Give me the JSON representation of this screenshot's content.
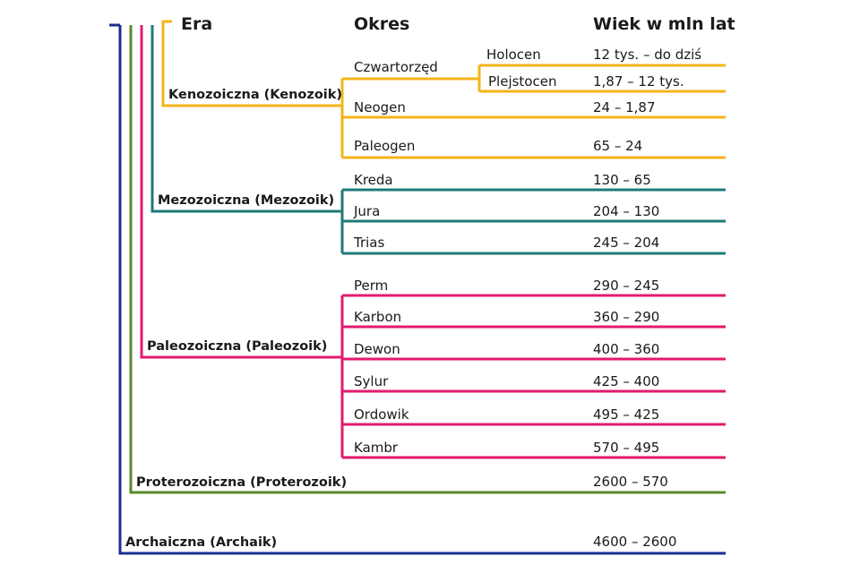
{
  "headers": {
    "era": "Era",
    "period": "Okres",
    "age": "Wiek w mln lat"
  },
  "colors": {
    "cenozoic": "#f4b41a",
    "mesozoic": "#1f7a78",
    "paleozoic": "#e3196f",
    "proterozoic": "#5a8a2a",
    "archaic": "#1b2f8f"
  },
  "eras": {
    "cenozoic": "Kenozoiczna (Kenozoik)",
    "mesozoic": "Mezozoiczna (Mezozoik)",
    "paleozoic": "Paleozoiczna (Paleozoik)",
    "proterozoic": "Proterozoiczna (Proterozoik)",
    "archaic": "Archaiczna (Archaik)"
  },
  "cenozoic": {
    "quaternary": "Czwartorzęd",
    "holocene": "Holocen",
    "holocene_age": "12 tys. – do dziś",
    "pleistocene": "Plejstocen",
    "pleistocene_age": "1,87 – 12 tys.",
    "neogene": "Neogen",
    "neogene_age": "24 – 1,87",
    "paleogene": "Paleogen",
    "paleogene_age": "65 – 24"
  },
  "mesozoic": {
    "cretaceous": "Kreda",
    "cretaceous_age": "130 – 65",
    "jurassic": "Jura",
    "jurassic_age": "204 – 130",
    "triassic": "Trias",
    "triassic_age": "245 – 204"
  },
  "paleozoic": {
    "permian": "Perm",
    "permian_age": "290 – 245",
    "carboniferous": "Karbon",
    "carboniferous_age": "360 – 290",
    "devonian": "Dewon",
    "devonian_age": "400 – 360",
    "silurian": "Sylur",
    "silurian_age": "425 – 400",
    "ordovician": "Ordowik",
    "ordovician_age": "495 – 425",
    "cambrian": "Kambr",
    "cambrian_age": "570 – 495"
  },
  "proterozoic": {
    "age": "2600 – 570"
  },
  "archaic": {
    "age": "4600 – 2600"
  }
}
